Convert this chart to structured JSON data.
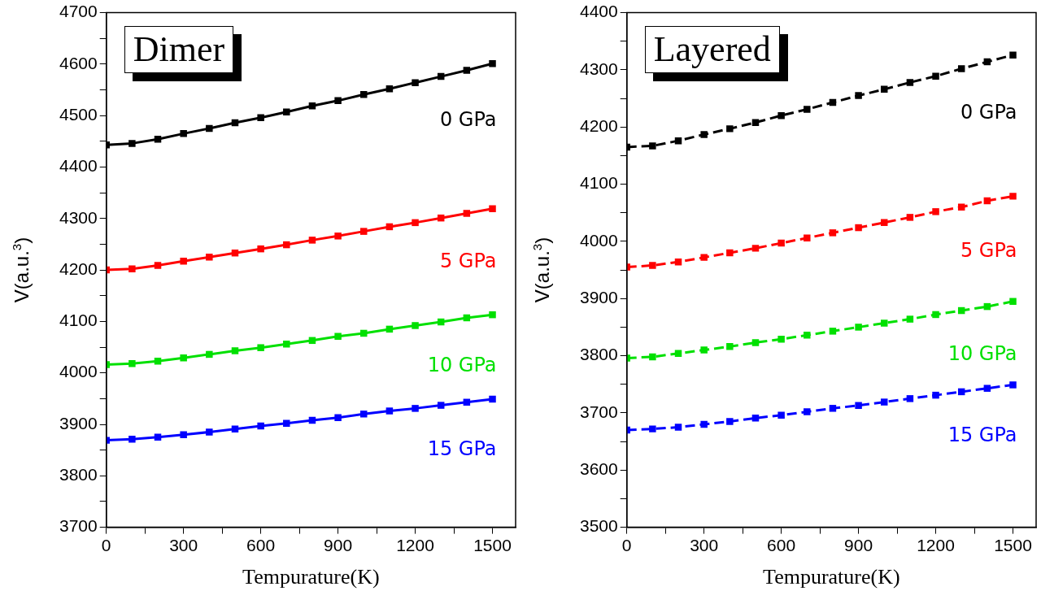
{
  "chart_data": [
    {
      "type": "line",
      "title": "Dimer",
      "xlabel": "Tempurature(K)",
      "ylabel": "V(a.u.$^{3}$)",
      "x": [
        0,
        100,
        200,
        300,
        400,
        500,
        600,
        700,
        800,
        900,
        1000,
        1100,
        1200,
        1300,
        1400,
        1500
      ],
      "series": [
        {
          "name": "0 GPa",
          "color": "#000000",
          "values": [
            4443,
            4446,
            4454,
            4465,
            4475,
            4486,
            4496,
            4507,
            4519,
            4529,
            4541,
            4552,
            4564,
            4576,
            4588,
            4601
          ]
        },
        {
          "name": "5 GPa",
          "color": "#ff0000",
          "values": [
            4200,
            4202,
            4209,
            4217,
            4225,
            4233,
            4241,
            4249,
            4258,
            4266,
            4275,
            4284,
            4292,
            4301,
            4310,
            4319
          ]
        },
        {
          "name": "10 GPa",
          "color": "#00e000",
          "values": [
            4016,
            4018,
            4023,
            4029,
            4036,
            4043,
            4049,
            4056,
            4063,
            4071,
            4077,
            4085,
            4092,
            4099,
            4107,
            4113
          ]
        },
        {
          "name": "15 GPa",
          "color": "#0000ff",
          "values": [
            3869,
            3871,
            3875,
            3880,
            3885,
            3891,
            3897,
            3902,
            3908,
            3913,
            3920,
            3926,
            3931,
            3937,
            3943,
            3949
          ]
        }
      ],
      "xlim": [
        0,
        1590
      ],
      "xticks": [
        0,
        {
          "value": 150,
          "label": null
        },
        300,
        {
          "value": 450,
          "label": null
        },
        600,
        {
          "value": 750,
          "label": null
        },
        900,
        {
          "value": 1050,
          "label": null
        },
        1200,
        {
          "value": 1350,
          "label": null
        },
        1500
      ],
      "ylim": [
        3700,
        4700
      ],
      "yticks": [
        3700,
        {
          "value": 3750,
          "label": null
        },
        3800,
        {
          "value": 3850,
          "label": null
        },
        3900,
        {
          "value": 3950,
          "label": null
        },
        4000,
        {
          "value": 4050,
          "label": null
        },
        4100,
        {
          "value": 4150,
          "label": null
        },
        4200,
        {
          "value": 4250,
          "label": null
        },
        4300,
        {
          "value": 4350,
          "label": null
        },
        4400,
        {
          "value": 4450,
          "label": null
        },
        4500,
        {
          "value": 4550,
          "label": null
        },
        4600,
        {
          "value": 4650,
          "label": null
        },
        4700
      ],
      "marker": "square",
      "line_style": "solid",
      "grid": false,
      "legend": false
    },
    {
      "type": "line",
      "title": "Layered",
      "xlabel": "Tempurature(K)",
      "ylabel": "V(a.u.$^{3}$)",
      "x": [
        0,
        100,
        200,
        300,
        400,
        500,
        600,
        700,
        800,
        900,
        1000,
        1100,
        1200,
        1300,
        1400,
        1500
      ],
      "series": [
        {
          "name": "0 GPa",
          "color": "#000000",
          "values": [
            4165,
            4167,
            4176,
            4187,
            4197,
            4208,
            4220,
            4231,
            4243,
            4255,
            4266,
            4278,
            4289,
            4302,
            4314,
            4326
          ]
        },
        {
          "name": "5 GPa",
          "color": "#ff0000",
          "values": [
            3955,
            3958,
            3964,
            3972,
            3980,
            3988,
            3997,
            4006,
            4015,
            4024,
            4033,
            4042,
            4052,
            4060,
            4071,
            4079
          ]
        },
        {
          "name": "10 GPa",
          "color": "#00e000",
          "values": [
            3796,
            3798,
            3804,
            3810,
            3816,
            3823,
            3829,
            3836,
            3843,
            3850,
            3857,
            3864,
            3872,
            3879,
            3886,
            3895
          ]
        },
        {
          "name": "15 GPa",
          "color": "#0000ff",
          "values": [
            3670,
            3672,
            3675,
            3680,
            3685,
            3691,
            3696,
            3702,
            3708,
            3713,
            3719,
            3725,
            3731,
            3737,
            3743,
            3749
          ]
        }
      ],
      "xlim": [
        0,
        1590
      ],
      "xticks": [
        0,
        {
          "value": 150,
          "label": null
        },
        300,
        {
          "value": 450,
          "label": null
        },
        600,
        {
          "value": 750,
          "label": null
        },
        900,
        {
          "value": 1050,
          "label": null
        },
        1200,
        {
          "value": 1350,
          "label": null
        },
        1500
      ],
      "ylim": [
        3500,
        4400
      ],
      "yticks": [
        3500,
        {
          "value": 3550,
          "label": null
        },
        3600,
        {
          "value": 3650,
          "label": null
        },
        3700,
        {
          "value": 3750,
          "label": null
        },
        3800,
        {
          "value": 3850,
          "label": null
        },
        3900,
        {
          "value": 3950,
          "label": null
        },
        4000,
        {
          "value": 4050,
          "label": null
        },
        4100,
        {
          "value": 4150,
          "label": null
        },
        4200,
        {
          "value": 4250,
          "label": null
        },
        4300,
        {
          "value": 4350,
          "label": null
        },
        4400
      ],
      "marker": "square",
      "line_style": "dashed",
      "grid": false,
      "legend": false
    }
  ]
}
